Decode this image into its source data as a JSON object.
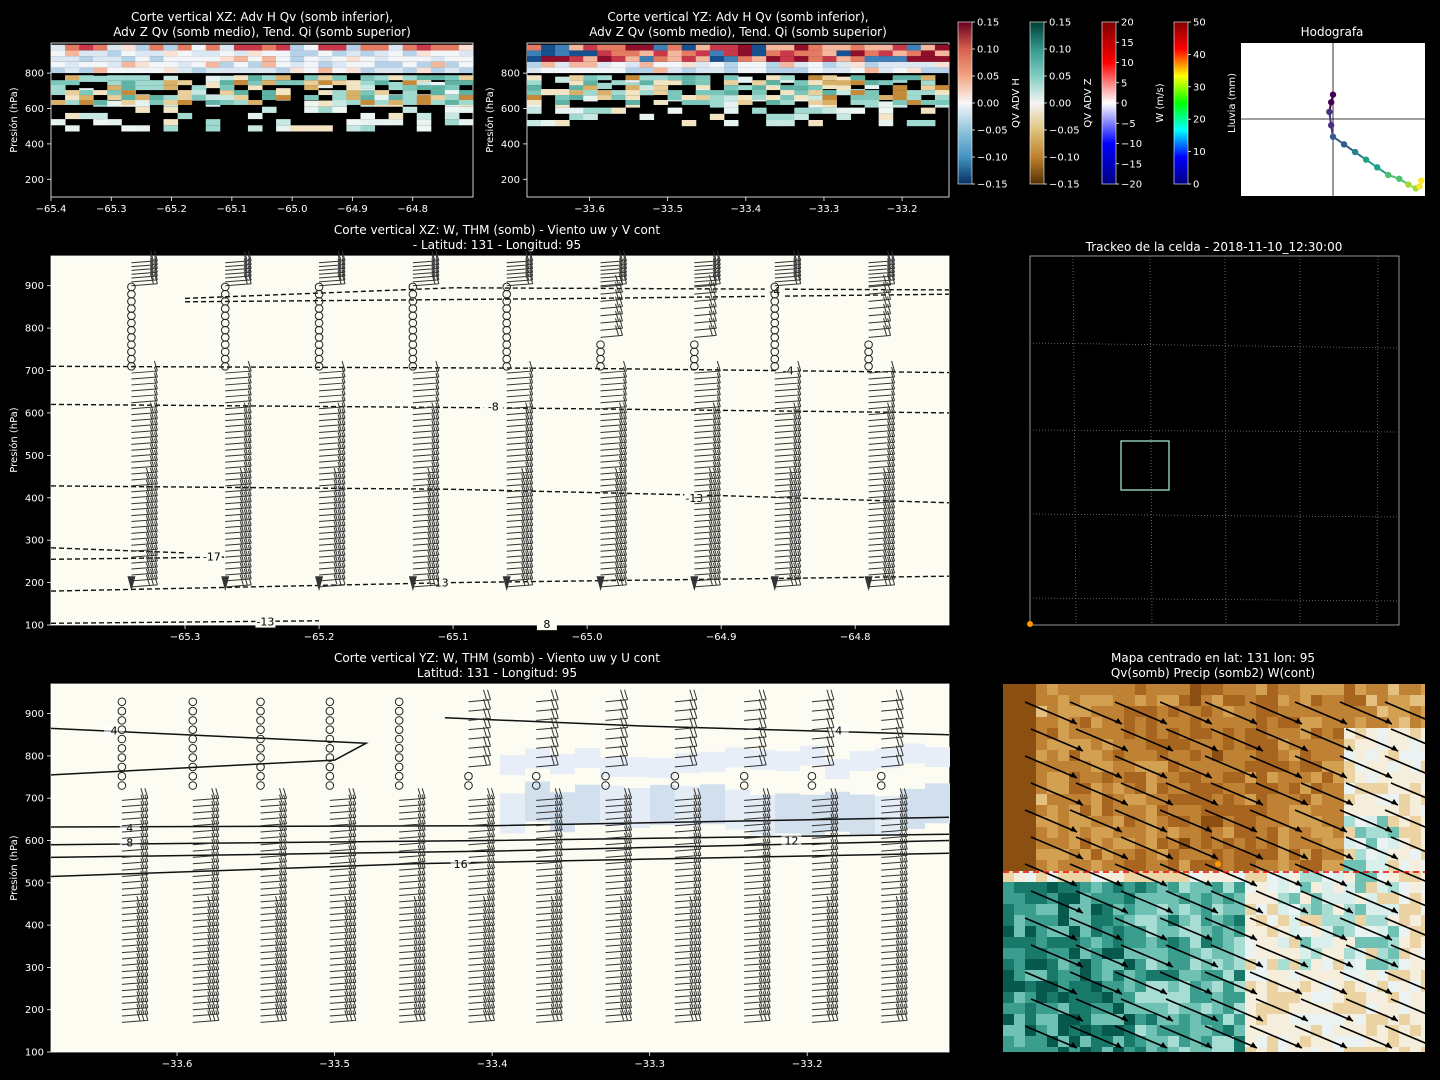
{
  "panels": {
    "xz_top": {
      "title1": "Corte vertical XZ: Adv H Qv (somb inferior),",
      "title2": "Adv Z Qv (somb medio), Tend. Qi (somb superior)",
      "ylabel": "Presión (hPa)"
    },
    "yz_top": {
      "title1": "Corte vertical YZ: Adv H Qv (somb inferior),",
      "title2": "Adv Z Qv (somb medio), Tend. Qi (somb superior)",
      "ylabel": "Presión (hPa)"
    },
    "xz_mid": {
      "title1": "Corte vertical XZ: W, THM (somb) - Viento uw y V cont",
      "title2": "- Latitud: 131 - Longitud: 95",
      "ylabel": "Presión (hPa)"
    },
    "yz_bot": {
      "title1": "Corte vertical YZ: W, THM (somb) - Viento uw y U cont",
      "title2": "Latitud: 131 - Longitud: 95",
      "ylabel": "Presión (hPa)"
    },
    "track": {
      "title": "Trackeo de la celda - 2018-11-10_12:30:00"
    },
    "map": {
      "title1": "Mapa centrado en lat: 131 lon: 95",
      "title2": "Qv(somb) Precip (somb2) W(cont)"
    },
    "hodo": {
      "title": "Hodografa"
    }
  },
  "colorbars": [
    {
      "label": "QV ADV H",
      "ticks": [
        "0.15",
        "0.10",
        "0.05",
        "0.00",
        "−0.05",
        "−0.10",
        "−0.15"
      ],
      "colors": [
        "#67001f",
        "#d6604d",
        "#f4a582",
        "#f7f7f7",
        "#92c5de",
        "#4393c3",
        "#053061"
      ]
    },
    {
      "label": "QV ADV Z",
      "ticks": [
        "0.15",
        "0.10",
        "0.05",
        "0.00",
        "−0.05",
        "−0.10",
        "−0.15"
      ],
      "colors": [
        "#003c30",
        "#35978f",
        "#80cdc1",
        "#f5f5f5",
        "#dfc27d",
        "#bf812d",
        "#543005"
      ]
    },
    {
      "label": "W (m/s)",
      "ticks": [
        "20",
        "15",
        "10",
        "5",
        "0",
        "−5",
        "−10",
        "−15",
        "−20"
      ],
      "colors": [
        "#800000",
        "#ff0000",
        "#ffffff",
        "#0000ff",
        "#000080"
      ]
    },
    {
      "label": "Lluvia (mm)",
      "ticks": [
        "50",
        "40",
        "30",
        "20",
        "10",
        "0"
      ],
      "colors": [
        "#800000",
        "#ff0000",
        "#ffff00",
        "#00ff00",
        "#00ffff",
        "#0000ff",
        "#000080"
      ]
    }
  ],
  "chart_data": [
    {
      "type": "heatmap",
      "title": "Corte vertical XZ: Adv H Qv (somb inferior), Adv Z Qv (somb medio), Tend. Qi (somb superior)",
      "xlabel": "",
      "ylabel": "Presión (hPa)",
      "xlim": [
        -65.4,
        -64.7
      ],
      "ylim": [
        970,
        100
      ],
      "x_ticks": [
        -65.4,
        -65.3,
        -65.2,
        -65.1,
        -65.0,
        -64.9,
        -64.8
      ],
      "x_tick_labels": [
        "−65.4",
        "−65.3",
        "−65.2",
        "−65.1",
        "−65.0",
        "−64.9",
        "−64.8"
      ],
      "y_ticks": [
        200,
        400,
        600,
        800
      ]
    },
    {
      "type": "heatmap",
      "title": "Corte vertical YZ: Adv H Qv (somb inferior), Adv Z Qv (somb medio), Tend. Qi (somb superior)",
      "xlabel": "",
      "ylabel": "Presión (hPa)",
      "xlim": [
        -33.68,
        -33.14
      ],
      "ylim": [
        970,
        100
      ],
      "x_ticks": [
        -33.6,
        -33.5,
        -33.4,
        -33.3,
        -33.2
      ],
      "x_tick_labels": [
        "−33.6",
        "−33.5",
        "−33.4",
        "−33.3",
        "−33.2"
      ],
      "y_ticks": [
        200,
        400,
        600,
        800
      ]
    },
    {
      "type": "heatmap",
      "title": "Corte vertical XZ: W, THM (somb) - Viento uw y V cont - Latitud: 131 - Longitud: 95",
      "xlabel": "",
      "ylabel": "Presión (hPa)",
      "xlim": [
        -65.4,
        -64.73
      ],
      "ylim": [
        970,
        100
      ],
      "x_ticks": [
        -65.3,
        -65.2,
        -65.1,
        -65.0,
        -64.9,
        -64.8
      ],
      "x_tick_labels": [
        "−65.3",
        "−65.2",
        "−65.1",
        "−65.0",
        "−64.9",
        "−64.8"
      ],
      "y_ticks": [
        100,
        200,
        300,
        400,
        500,
        600,
        700,
        800,
        900
      ],
      "barb_columns_x": [
        -65.34,
        -65.27,
        -65.2,
        -65.13,
        -65.06,
        -64.99,
        -64.92,
        -64.86,
        -64.79
      ],
      "contour_labels": [
        "-13",
        "-13",
        "-17",
        "-13",
        "-8",
        "-4",
        "-4",
        "8"
      ],
      "contours": [
        {
          "label": "-13",
          "style": "dashed",
          "points": [
            [
              -65.4,
              104
            ],
            [
              -65.2,
              110
            ]
          ]
        },
        {
          "label": "-13",
          "style": "dashed",
          "points": [
            [
              -65.4,
              180
            ],
            [
              -65.1,
              200
            ],
            [
              -64.73,
              215
            ]
          ]
        },
        {
          "label": "-17",
          "style": "dashed",
          "points": [
            [
              -65.4,
              255
            ],
            [
              -65.27,
              260
            ]
          ]
        },
        {
          "label": "-17",
          "style": "dashed",
          "points": [
            [
              -65.4,
              282
            ],
            [
              -65.3,
              270
            ]
          ]
        },
        {
          "label": "-13",
          "style": "dashed",
          "points": [
            [
              -65.4,
              428
            ],
            [
              -65.1,
              420
            ],
            [
              -64.9,
              405
            ],
            [
              -64.73,
              388
            ]
          ]
        },
        {
          "label": "-8",
          "style": "dashed",
          "points": [
            [
              -65.4,
              620
            ],
            [
              -65.07,
              612
            ],
            [
              -64.73,
              600
            ]
          ]
        },
        {
          "label": "-4",
          "style": "dashed",
          "points": [
            [
              -65.4,
              710
            ],
            [
              -65.0,
              705
            ],
            [
              -64.73,
              695
            ]
          ]
        },
        {
          "label": "-4",
          "style": "dashed",
          "points": [
            [
              -65.3,
              862
            ],
            [
              -65.0,
              870
            ],
            [
              -64.73,
              880
            ]
          ]
        },
        {
          "label": "-4",
          "style": "dashed",
          "points": [
            [
              -65.3,
              870
            ],
            [
              -65.1,
              895
            ],
            [
              -64.73,
              890
            ]
          ]
        }
      ]
    },
    {
      "type": "heatmap",
      "title": "Corte vertical YZ: W, THM (somb) - Viento uw y U cont - Latitud: 131 - Longitud: 95",
      "xlabel": "",
      "ylabel": "Presión (hPa)",
      "xlim": [
        -33.68,
        -33.11
      ],
      "ylim": [
        970,
        100
      ],
      "x_ticks": [
        -33.6,
        -33.5,
        -33.4,
        -33.3,
        -33.2
      ],
      "x_tick_labels": [
        "−33.6",
        "−33.5",
        "−33.4",
        "−33.3",
        "−33.2"
      ],
      "y_ticks": [
        100,
        200,
        300,
        400,
        500,
        600,
        700,
        800,
        900
      ],
      "barb_columns_x": [
        -33.635,
        -33.59,
        -33.547,
        -33.503,
        -33.459,
        -33.415,
        -33.372,
        -33.328,
        -33.284,
        -33.24,
        -33.197,
        -33.153
      ],
      "contour_labels": [
        "16",
        "8",
        "4",
        "12",
        "4"
      ],
      "contours": [
        {
          "label": "16",
          "style": "solid",
          "points": [
            [
              -33.68,
              515
            ],
            [
              -33.45,
              545
            ],
            [
              -33.11,
              570
            ]
          ]
        },
        {
          "label": "8",
          "style": "solid",
          "points": [
            [
              -33.68,
              590
            ],
            [
              -33.4,
              600
            ],
            [
              -33.11,
              615
            ]
          ]
        },
        {
          "label": "4",
          "style": "solid",
          "points": [
            [
              -33.68,
              632
            ],
            [
              -33.4,
              635
            ],
            [
              -33.11,
              655
            ]
          ]
        },
        {
          "label": "12",
          "style": "solid",
          "points": [
            [
              -33.68,
              560
            ],
            [
              -33.4,
              575
            ],
            [
              -33.11,
              600
            ]
          ]
        },
        {
          "label": "4",
          "style": "solid",
          "points": [
            [
              -33.68,
              755
            ],
            [
              -33.5,
              790
            ],
            [
              -33.48,
              830
            ],
            [
              -33.68,
              865
            ]
          ]
        },
        {
          "label": "4",
          "style": "solid",
          "points": [
            [
              -33.43,
              890
            ],
            [
              -33.3,
              870
            ],
            [
              -33.11,
              850
            ]
          ]
        }
      ]
    },
    {
      "type": "line",
      "title": "Hodografa",
      "xlabel": "",
      "ylabel": "",
      "x": [
        0.0,
        -0.1,
        -0.2,
        -0.1,
        0.0,
        0.6,
        1.2,
        1.8,
        2.4,
        3.0,
        3.6,
        4.1,
        4.5,
        4.7,
        4.8
      ],
      "y": [
        1.3,
        0.9,
        0.4,
        -0.3,
        -0.9,
        -1.3,
        -1.7,
        -2.1,
        -2.5,
        -2.9,
        -3.1,
        -3.4,
        -3.6,
        -3.5,
        -3.2
      ],
      "xlim": [
        -5,
        5
      ],
      "ylim": [
        -4,
        4
      ],
      "colorbar_values_mm": [
        0,
        10,
        20,
        30,
        40,
        50
      ]
    }
  ]
}
